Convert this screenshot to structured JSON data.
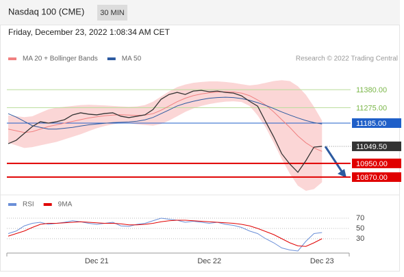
{
  "header": {
    "title": "Nasdaq 100 (CME)",
    "interval": "30 MIN",
    "timestamp": "Friday, December 23, 2022 1:08:34 AM CET",
    "credit": "Research © 2022 Trading Central"
  },
  "chart_data": [
    {
      "type": "line",
      "categories": [
        null,
        null,
        null,
        null,
        null,
        null,
        null,
        null,
        null,
        null,
        null,
        "Dec 21",
        null,
        null,
        null,
        null,
        null,
        null,
        null,
        null,
        null,
        null,
        null,
        null,
        null,
        "Dec 22",
        null,
        null,
        null,
        null,
        null,
        null,
        null,
        null,
        null,
        null,
        null,
        null,
        null,
        "Dec 23"
      ],
      "values": [
        11065,
        11085,
        11125,
        11165,
        11193,
        11185,
        11193,
        11205,
        11233,
        11245,
        11237,
        11233,
        11241,
        11245,
        11225,
        11217,
        11225,
        11233,
        11264,
        11324,
        11352,
        11364,
        11352,
        11372,
        11376,
        11368,
        11372,
        11364,
        11360,
        11344,
        11312,
        11284,
        11193,
        11105,
        11006,
        10946,
        10898,
        10966,
        11045,
        11049.5
      ],
      "color": "#333333",
      "series": [
        {
          "name": "MA 20 + Bollinger Bands",
          "color": "#f08080",
          "values": [
            11150,
            11140,
            11130,
            11135,
            11150,
            11165,
            11175,
            11185,
            11195,
            11205,
            11215,
            11222,
            11228,
            11232,
            11234,
            11232,
            11230,
            11232,
            11240,
            11260,
            11285,
            11310,
            11330,
            11345,
            11355,
            11362,
            11366,
            11368,
            11366,
            11360,
            11345,
            11320,
            11290,
            11250,
            11205,
            11160,
            11110,
            11070,
            11040,
            11020
          ]
        },
        {
          "name": "MA 50",
          "color": "#2c5aa0",
          "values": [
            11240,
            11220,
            11195,
            11170,
            11160,
            11150,
            11150,
            11155,
            11160,
            11168,
            11175,
            11180,
            11184,
            11188,
            11190,
            11192,
            11196,
            11204,
            11218,
            11240,
            11262,
            11285,
            11300,
            11312,
            11322,
            11330,
            11334,
            11336,
            11334,
            11328,
            11318,
            11304,
            11288,
            11270,
            11250,
            11232,
            11215,
            11200,
            11188,
            11180
          ]
        }
      ],
      "bands": {
        "color": "#fbd6d6",
        "upper": [
          11230,
          11225,
          11220,
          11225,
          11245,
          11265,
          11275,
          11280,
          11285,
          11290,
          11292,
          11290,
          11288,
          11285,
          11282,
          11280,
          11282,
          11290,
          11310,
          11340,
          11370,
          11395,
          11410,
          11420,
          11425,
          11428,
          11428,
          11425,
          11420,
          11412,
          11405,
          11410,
          11420,
          11430,
          11435,
          11430,
          11400,
          11350,
          11280,
          11200
        ],
        "lower": [
          11070,
          11055,
          11040,
          11045,
          11055,
          11065,
          11075,
          11090,
          11105,
          11120,
          11138,
          11155,
          11168,
          11178,
          11186,
          11184,
          11178,
          11174,
          11170,
          11180,
          11200,
          11225,
          11250,
          11270,
          11285,
          11296,
          11304,
          11310,
          11312,
          11308,
          11285,
          11230,
          11160,
          11070,
          10975,
          10890,
          10820,
          10790,
          10800,
          10840
        ]
      },
      "levels": [
        {
          "value": 11380,
          "label": "11380.00",
          "color": "#7ab648",
          "box": false
        },
        {
          "value": 11275,
          "label": "11275.00",
          "color": "#7ab648",
          "box": false
        },
        {
          "value": 11185,
          "label": "11185.00",
          "color": "#1f5fc8",
          "box": true
        },
        {
          "value": 11049.5,
          "label": "11049.50",
          "color": "#333333",
          "box": true
        },
        {
          "value": 10950,
          "label": "10950.00",
          "color": "#e00000",
          "box": true
        },
        {
          "value": 10870,
          "label": "10870.00",
          "color": "#e00000",
          "box": true
        }
      ],
      "ylim": [
        10770,
        11520
      ]
    },
    {
      "type": "line",
      "series": [
        {
          "name": "RSI",
          "color": "#6a8fd8",
          "values": [
            40,
            45,
            55,
            60,
            62,
            58,
            60,
            62,
            65,
            63,
            60,
            58,
            60,
            62,
            55,
            54,
            58,
            60,
            65,
            70,
            68,
            66,
            62,
            64,
            62,
            60,
            62,
            58,
            56,
            52,
            45,
            40,
            30,
            22,
            12,
            8,
            6,
            25,
            40,
            42
          ]
        },
        {
          "name": "9MA",
          "color": "#e00000",
          "values": [
            35,
            40,
            45,
            52,
            58,
            60,
            60,
            61,
            62,
            63,
            62,
            61,
            60,
            60,
            59,
            57,
            57,
            58,
            60,
            63,
            65,
            66,
            66,
            65,
            64,
            63,
            62,
            61,
            60,
            58,
            55,
            50,
            44,
            38,
            30,
            22,
            16,
            15,
            22,
            30
          ]
        }
      ],
      "ylim": [
        0,
        90
      ],
      "yticks": [
        70,
        50,
        30
      ],
      "grid": true
    }
  ]
}
